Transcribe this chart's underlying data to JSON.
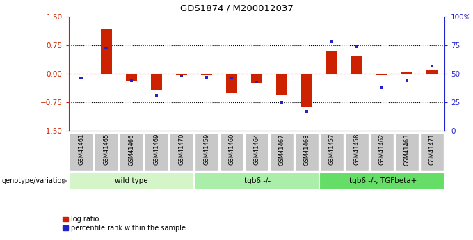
{
  "title": "GDS1874 / M200012037",
  "samples": [
    "GSM41461",
    "GSM41465",
    "GSM41466",
    "GSM41469",
    "GSM41470",
    "GSM41459",
    "GSM41460",
    "GSM41464",
    "GSM41467",
    "GSM41468",
    "GSM41457",
    "GSM41458",
    "GSM41462",
    "GSM41463",
    "GSM41471"
  ],
  "log_ratio": [
    0.0,
    1.2,
    -0.18,
    -0.42,
    -0.04,
    -0.04,
    -0.52,
    -0.23,
    -0.55,
    -0.88,
    0.58,
    0.48,
    -0.04,
    0.04,
    0.1
  ],
  "percentile_rank": [
    46,
    73,
    44,
    31,
    48,
    47,
    46,
    43,
    25,
    17,
    78,
    74,
    38,
    44,
    57
  ],
  "groups": [
    {
      "label": "wild type",
      "start": 0,
      "end": 5,
      "color": "#d4f5c8"
    },
    {
      "label": "Itgb6 -/-",
      "start": 5,
      "end": 10,
      "color": "#aaeeaa"
    },
    {
      "label": "Itgb6 -/-, TGFbeta+",
      "start": 10,
      "end": 15,
      "color": "#66dd66"
    }
  ],
  "ylim": [
    -1.5,
    1.5
  ],
  "yticks_left": [
    -1.5,
    -0.75,
    0.0,
    0.75,
    1.5
  ],
  "yticks_right": [
    0,
    25,
    50,
    75,
    100
  ],
  "red_color": "#cc2200",
  "blue_color": "#2222cc",
  "legend_items": [
    "log ratio",
    "percentile rank within the sample"
  ],
  "genotype_label": "genotype/variation"
}
